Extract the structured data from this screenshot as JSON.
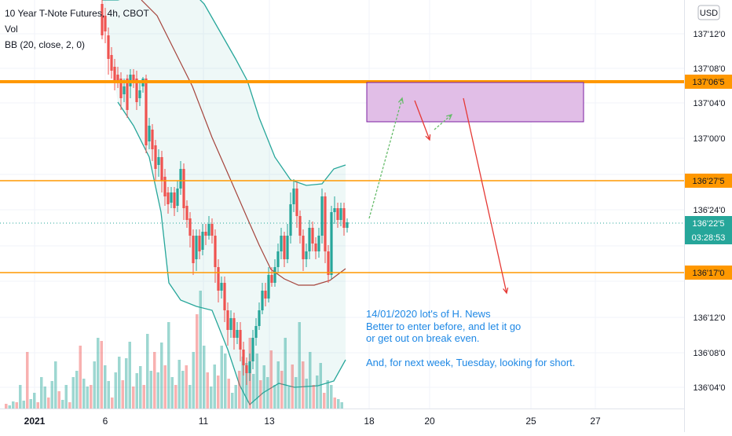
{
  "chart_data": {
    "type": "candlestick",
    "title": "10 Year T-Note Futures, 4h, CBOT",
    "indicators": [
      "Vol",
      "BB (20, close, 2, 0)"
    ],
    "currency": "USD",
    "y_axis_ticks": [
      "137'12'0",
      "137'08'0",
      "137'04'0",
      "137'00'0",
      "136'24'0",
      "136'12'0",
      "136'08'0",
      "136'04'0"
    ],
    "x_axis_ticks": [
      "2021",
      "6",
      "11",
      "13",
      "18",
      "20",
      "25",
      "27"
    ],
    "price_labels": {
      "resistance_top": "137'06'5",
      "resistance_mid": "136'27'5",
      "current": "136'22'5",
      "countdown": "03:28:53",
      "support": "136'17'0"
    },
    "ylim_ticks": [
      0,
      1
    ],
    "note": [
      "14/01/2020 lot's of H. News",
      "Better to enter before, and let it go",
      "or get out on break even.",
      "",
      "And, for next week, Tuesday, looking for short."
    ],
    "colors": {
      "up": "#26a69a",
      "down": "#ef5350",
      "level_line": "#ff9800",
      "bb_band": "#26a69a",
      "bb_basis": "#a5443c",
      "zone": "#e1bee7",
      "note": "#1e88e5"
    }
  }
}
